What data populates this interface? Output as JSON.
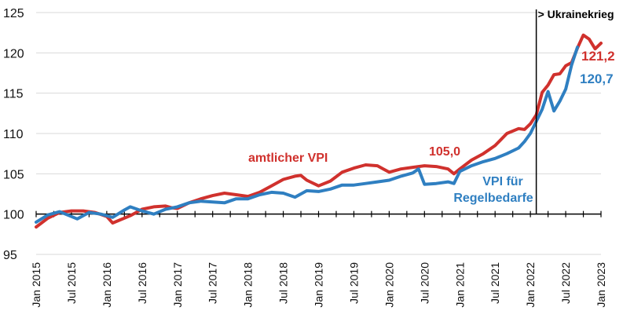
{
  "chart_data": {
    "type": "line",
    "title": "",
    "xlabel": "",
    "ylabel": "",
    "ylim": [
      95,
      125
    ],
    "yticks": [
      95,
      100,
      105,
      110,
      115,
      120,
      125
    ],
    "baseline": 100,
    "grid": "horizontal",
    "x_start": "2015-01",
    "x_end": "2023-01",
    "x_tick_labels": [
      "Jan 2015",
      "Jul 2015",
      "Jan 2016",
      "Jul 2016",
      "Jan 2017",
      "Jul 2017",
      "Jan 2018",
      "Jul 2018",
      "Jan 2019",
      "Jul 2019",
      "Jan 2020",
      "Jul 2020",
      "Jan 2021",
      "Jul 2021",
      "Jan 2022",
      "Jul 2022",
      "Jan 2023"
    ],
    "colors": {
      "vpi": "#d0312d",
      "regelbedarfe": "#2f7fc1"
    },
    "series": [
      {
        "key": "vpi",
        "label_lines": [
          "amtlicher VPI"
        ],
        "end_label": "121,2",
        "points": [
          {
            "x": "2015-01",
            "y": 98.4
          },
          {
            "x": "2015-03",
            "y": 99.5
          },
          {
            "x": "2015-05",
            "y": 100.2
          },
          {
            "x": "2015-07",
            "y": 100.4
          },
          {
            "x": "2015-09",
            "y": 100.4
          },
          {
            "x": "2015-11",
            "y": 100.2
          },
          {
            "x": "2016-01",
            "y": 99.7
          },
          {
            "x": "2016-02",
            "y": 98.9
          },
          {
            "x": "2016-03",
            "y": 99.2
          },
          {
            "x": "2016-05",
            "y": 99.8
          },
          {
            "x": "2016-07",
            "y": 100.6
          },
          {
            "x": "2016-09",
            "y": 100.9
          },
          {
            "x": "2016-11",
            "y": 101.0
          },
          {
            "x": "2016-12",
            "y": 100.8
          },
          {
            "x": "2017-01",
            "y": 100.7
          },
          {
            "x": "2017-03",
            "y": 101.4
          },
          {
            "x": "2017-05",
            "y": 101.9
          },
          {
            "x": "2017-07",
            "y": 102.3
          },
          {
            "x": "2017-09",
            "y": 102.6
          },
          {
            "x": "2017-11",
            "y": 102.4
          },
          {
            "x": "2018-01",
            "y": 102.2
          },
          {
            "x": "2018-03",
            "y": 102.7
          },
          {
            "x": "2018-05",
            "y": 103.5
          },
          {
            "x": "2018-07",
            "y": 104.3
          },
          {
            "x": "2018-09",
            "y": 104.7
          },
          {
            "x": "2018-10",
            "y": 104.8
          },
          {
            "x": "2018-11",
            "y": 104.2
          },
          {
            "x": "2019-01",
            "y": 103.5
          },
          {
            "x": "2019-03",
            "y": 104.1
          },
          {
            "x": "2019-05",
            "y": 105.2
          },
          {
            "x": "2019-07",
            "y": 105.7
          },
          {
            "x": "2019-09",
            "y": 106.1
          },
          {
            "x": "2019-11",
            "y": 106.0
          },
          {
            "x": "2019-12",
            "y": 105.6
          },
          {
            "x": "2020-01",
            "y": 105.2
          },
          {
            "x": "2020-03",
            "y": 105.6
          },
          {
            "x": "2020-05",
            "y": 105.8
          },
          {
            "x": "2020-07",
            "y": 106.0
          },
          {
            "x": "2020-09",
            "y": 105.9
          },
          {
            "x": "2020-11",
            "y": 105.6
          },
          {
            "x": "2020-12",
            "y": 105.0
          },
          {
            "x": "2021-01",
            "y": 105.6
          },
          {
            "x": "2021-03",
            "y": 106.7
          },
          {
            "x": "2021-05",
            "y": 107.5
          },
          {
            "x": "2021-07",
            "y": 108.5
          },
          {
            "x": "2021-09",
            "y": 110.0
          },
          {
            "x": "2021-11",
            "y": 110.6
          },
          {
            "x": "2021-12",
            "y": 110.5
          },
          {
            "x": "2022-01",
            "y": 111.2
          },
          {
            "x": "2022-02",
            "y": 112.3
          },
          {
            "x": "2022-03",
            "y": 115.1
          },
          {
            "x": "2022-04",
            "y": 116.0
          },
          {
            "x": "2022-05",
            "y": 117.3
          },
          {
            "x": "2022-06",
            "y": 117.4
          },
          {
            "x": "2022-07",
            "y": 118.4
          },
          {
            "x": "2022-08",
            "y": 118.8
          },
          {
            "x": "2022-09",
            "y": 120.6
          },
          {
            "x": "2022-10",
            "y": 122.2
          },
          {
            "x": "2022-11",
            "y": 121.7
          },
          {
            "x": "2022-12",
            "y": 120.5
          },
          {
            "x": "2023-01",
            "y": 121.2
          }
        ]
      },
      {
        "key": "regelbedarfe",
        "label_lines": [
          "VPI für",
          "Regelbedarfe"
        ],
        "end_label": "120,7",
        "points": [
          {
            "x": "2015-01",
            "y": 99.0
          },
          {
            "x": "2015-03",
            "y": 99.9
          },
          {
            "x": "2015-05",
            "y": 100.3
          },
          {
            "x": "2015-06",
            "y": 100.0
          },
          {
            "x": "2015-08",
            "y": 99.4
          },
          {
            "x": "2015-10",
            "y": 100.2
          },
          {
            "x": "2015-12",
            "y": 100.0
          },
          {
            "x": "2016-02",
            "y": 99.6
          },
          {
            "x": "2016-04",
            "y": 100.5
          },
          {
            "x": "2016-05",
            "y": 100.9
          },
          {
            "x": "2016-07",
            "y": 100.4
          },
          {
            "x": "2016-09",
            "y": 100.0
          },
          {
            "x": "2016-11",
            "y": 100.6
          },
          {
            "x": "2017-01",
            "y": 100.9
          },
          {
            "x": "2017-03",
            "y": 101.4
          },
          {
            "x": "2017-05",
            "y": 101.6
          },
          {
            "x": "2017-07",
            "y": 101.5
          },
          {
            "x": "2017-09",
            "y": 101.4
          },
          {
            "x": "2017-11",
            "y": 101.9
          },
          {
            "x": "2018-01",
            "y": 101.9
          },
          {
            "x": "2018-03",
            "y": 102.4
          },
          {
            "x": "2018-05",
            "y": 102.7
          },
          {
            "x": "2018-07",
            "y": 102.6
          },
          {
            "x": "2018-09",
            "y": 102.1
          },
          {
            "x": "2018-11",
            "y": 102.9
          },
          {
            "x": "2019-01",
            "y": 102.8
          },
          {
            "x": "2019-03",
            "y": 103.1
          },
          {
            "x": "2019-05",
            "y": 103.6
          },
          {
            "x": "2019-07",
            "y": 103.6
          },
          {
            "x": "2019-09",
            "y": 103.8
          },
          {
            "x": "2019-11",
            "y": 104.0
          },
          {
            "x": "2020-01",
            "y": 104.2
          },
          {
            "x": "2020-03",
            "y": 104.7
          },
          {
            "x": "2020-05",
            "y": 105.1
          },
          {
            "x": "2020-06",
            "y": 105.6
          },
          {
            "x": "2020-07",
            "y": 103.7
          },
          {
            "x": "2020-09",
            "y": 103.8
          },
          {
            "x": "2020-11",
            "y": 104.0
          },
          {
            "x": "2020-12",
            "y": 103.8
          },
          {
            "x": "2021-01",
            "y": 105.3
          },
          {
            "x": "2021-03",
            "y": 106.0
          },
          {
            "x": "2021-05",
            "y": 106.5
          },
          {
            "x": "2021-07",
            "y": 106.9
          },
          {
            "x": "2021-09",
            "y": 107.5
          },
          {
            "x": "2021-11",
            "y": 108.2
          },
          {
            "x": "2021-12",
            "y": 109.0
          },
          {
            "x": "2022-01",
            "y": 110.0
          },
          {
            "x": "2022-02",
            "y": 111.5
          },
          {
            "x": "2022-03",
            "y": 113.0
          },
          {
            "x": "2022-04",
            "y": 115.2
          },
          {
            "x": "2022-05",
            "y": 112.8
          },
          {
            "x": "2022-06",
            "y": 114.0
          },
          {
            "x": "2022-07",
            "y": 115.5
          },
          {
            "x": "2022-08",
            "y": 118.5
          },
          {
            "x": "2022-09",
            "y": 120.7
          }
        ]
      }
    ],
    "annotations": [
      {
        "key": "vpi_value",
        "text": "105,0",
        "x": "2020-12",
        "y": 105.0
      }
    ],
    "event": {
      "label": "> Ukrainekrieg",
      "x": "2022-02"
    }
  }
}
